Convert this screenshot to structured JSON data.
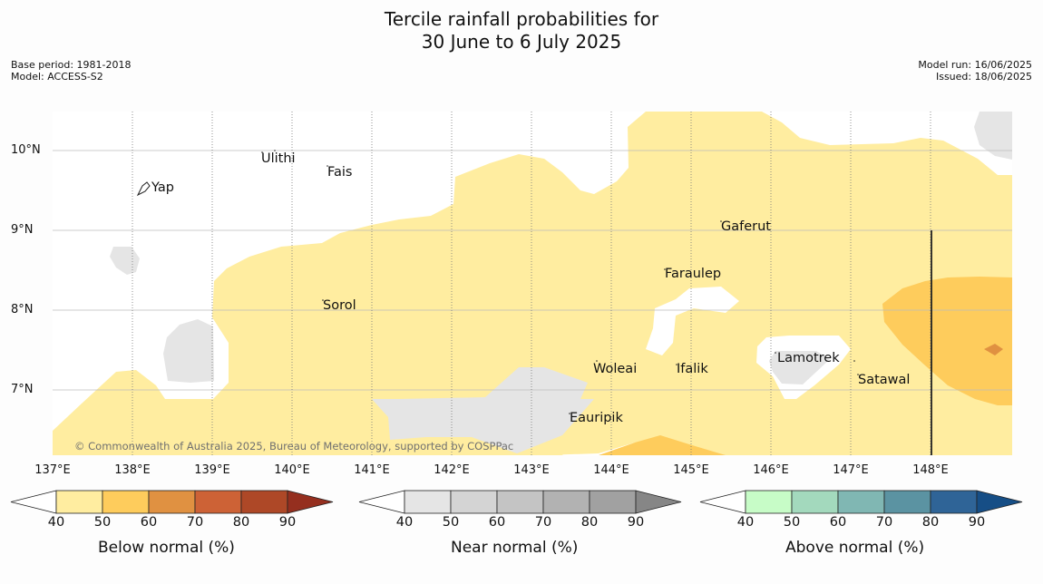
{
  "title_line1": "Tercile rainfall probabilities for",
  "title_line2": "30 June to 6 July 2025",
  "base_period": "Base period: 1981-2018",
  "model": "Model: ACCESS-S2",
  "model_run": "Model run: 16/06/2025",
  "issued": "Issued: 18/06/2025",
  "copyright": "© Commonwealth of Australia 2025, Bureau of Meteorology, supported by COSPPac",
  "lat_labels": [
    "10°N",
    "9°N",
    "8°N",
    "7°N"
  ],
  "lon_labels": [
    "137°E",
    "138°E",
    "139°E",
    "140°E",
    "141°E",
    "142°E",
    "143°E",
    "144°E",
    "145°E",
    "146°E",
    "147°E",
    "148°E"
  ],
  "places": [
    "Ulithi",
    "Fais",
    "Yap",
    "Gaferut",
    "Faraulep",
    "Sorol",
    "Lamotrek",
    "Woleai",
    "Ifalik",
    "Satawal",
    "Eauripik"
  ],
  "legends": [
    {
      "title": "Below normal (%)",
      "colors": [
        "#ffeda0",
        "#fecc5c",
        "#e09141",
        "#cd6236",
        "#ae4827",
        "#952f1f"
      ]
    },
    {
      "title": "Near normal (%)",
      "colors": [
        "#e5e5e5",
        "#d4d4d4",
        "#c4c4c4",
        "#b2b2b2",
        "#a1a1a1",
        "#868686"
      ]
    },
    {
      "title": "Above normal (%)",
      "colors": [
        "#c7fcc7",
        "#a3d9bd",
        "#80b7b3",
        "#5b93a2",
        "#2f6497",
        "#164e86"
      ]
    }
  ],
  "legend_ticks": [
    "40",
    "50",
    "60",
    "70",
    "80",
    "90"
  ],
  "colors": {
    "gridline": "#bbbbbb",
    "land": "#222222"
  }
}
